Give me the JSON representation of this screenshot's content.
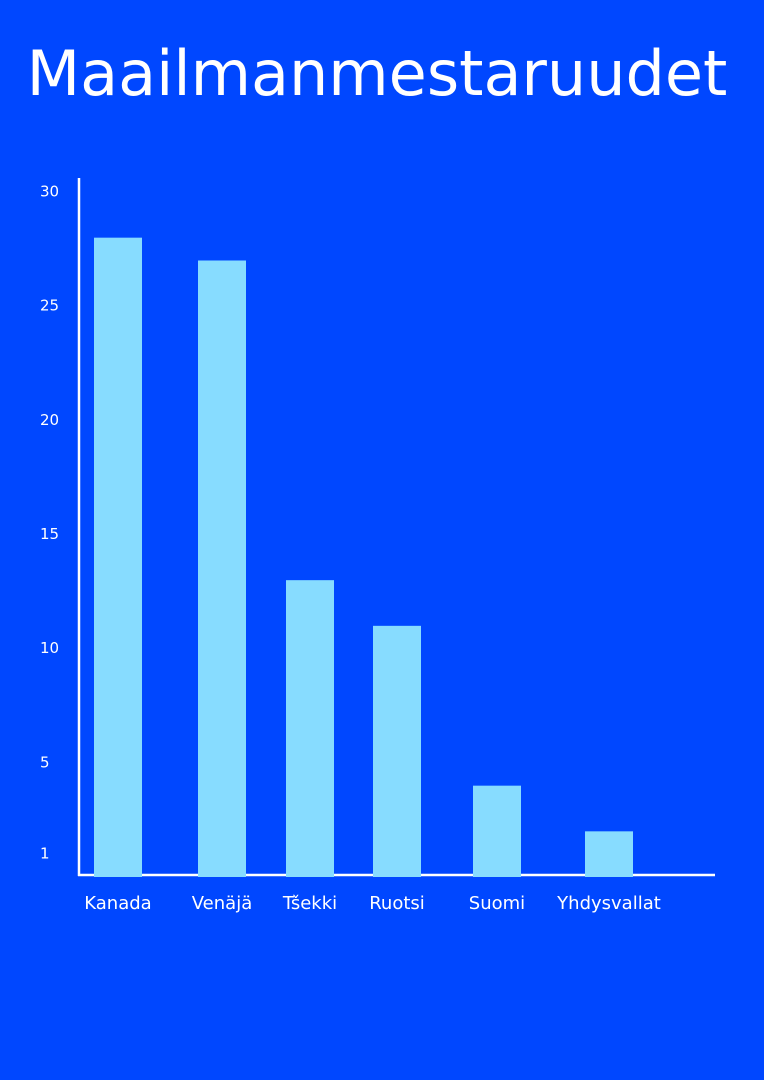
{
  "chart_data": {
    "type": "bar",
    "title": "Maailmanmestaruudet",
    "categories": [
      "Kanada",
      "Venäjä",
      "Tšekki",
      "Ruotsi",
      "Suomi",
      "Yhdysvallat"
    ],
    "values": [
      28,
      27,
      13,
      11,
      4,
      2
    ],
    "color": "#87dcff",
    "ylim": [
      0,
      30
    ],
    "yticks": [
      1,
      5,
      10,
      15,
      20,
      25,
      30
    ]
  }
}
